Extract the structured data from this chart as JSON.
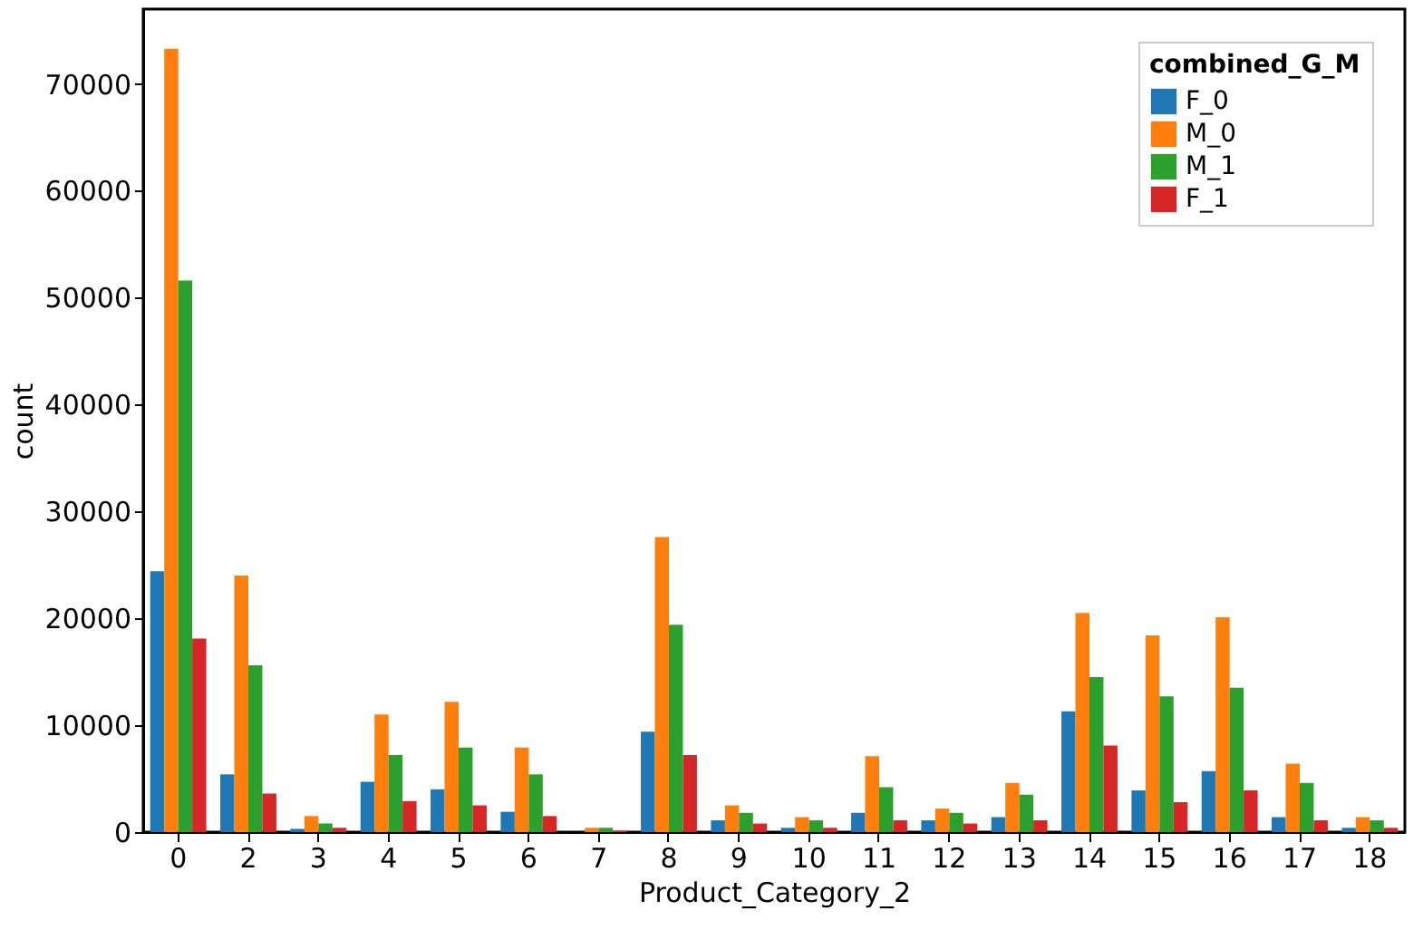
{
  "chart_data": {
    "type": "bar",
    "xlabel": "Product_Category_2",
    "ylabel": "count",
    "legend_title": "combined_G_M",
    "categories": [
      "0",
      "2",
      "3",
      "4",
      "5",
      "6",
      "7",
      "8",
      "9",
      "10",
      "11",
      "12",
      "13",
      "14",
      "15",
      "16",
      "17",
      "18"
    ],
    "series": [
      {
        "name": "F_0",
        "color": "#1f77b4",
        "values": [
          24400,
          5400,
          300,
          4700,
          4000,
          1900,
          null,
          9400,
          1100,
          400,
          1800,
          1100,
          1400,
          11300,
          3900,
          5700,
          1400,
          400
        ]
      },
      {
        "name": "M_0",
        "color": "#ff7f0e",
        "values": [
          73300,
          24000,
          1500,
          11000,
          12200,
          7900,
          400,
          27600,
          2500,
          1400,
          7100,
          2200,
          4600,
          20500,
          18400,
          20100,
          6400,
          1400
        ]
      },
      {
        "name": "M_1",
        "color": "#2ca02c",
        "values": [
          51600,
          15600,
          800,
          7200,
          7900,
          5400,
          400,
          19400,
          1800,
          1100,
          4200,
          1800,
          3500,
          14500,
          12700,
          13500,
          4600,
          1100
        ]
      },
      {
        "name": "F_1",
        "color": "#d62728",
        "values": [
          18100,
          3600,
          400,
          2900,
          2500,
          1500,
          100,
          7200,
          800,
          400,
          1100,
          800,
          1100,
          8100,
          2800,
          3900,
          1100,
          400
        ]
      }
    ],
    "ylim": [
      0,
      77000
    ],
    "yticks": [
      0,
      10000,
      20000,
      30000,
      40000,
      50000,
      60000,
      70000
    ],
    "grid": false,
    "legend": "top right"
  }
}
